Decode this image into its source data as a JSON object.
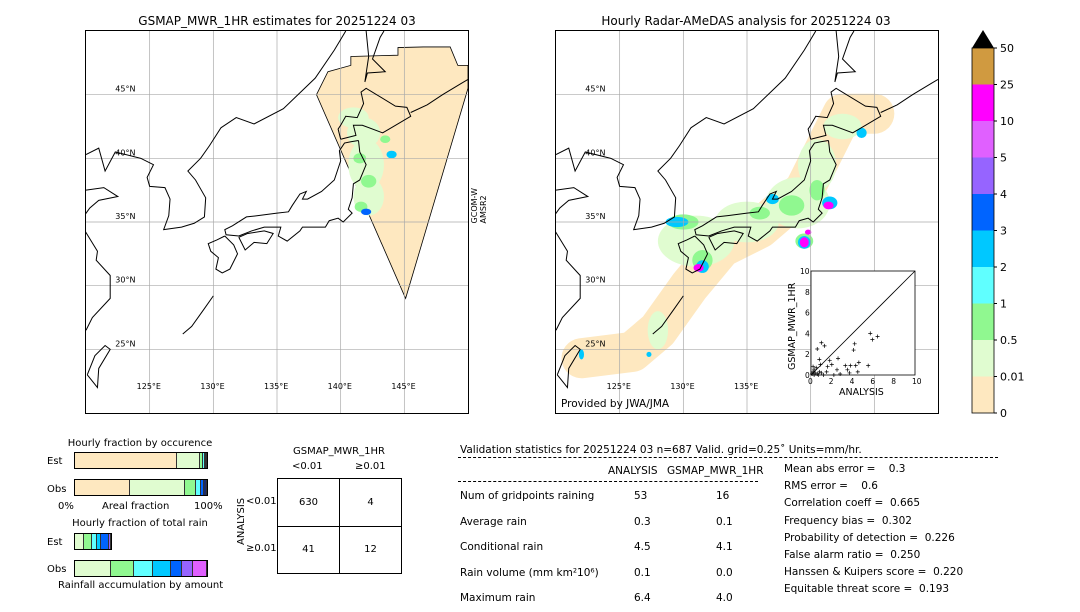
{
  "left_map": {
    "title": "GSMAP_MWR_1HR estimates for 20251224 03",
    "satellite_label_1": "GCOM-W",
    "satellite_label_2": "AMSR2",
    "lon_ticks": [
      "125°E",
      "130°E",
      "135°E",
      "140°E",
      "145°E"
    ],
    "lat_ticks": [
      "25°N",
      "30°N",
      "35°N",
      "40°N",
      "45°N"
    ]
  },
  "right_map": {
    "title": "Hourly Radar-AMeDAS analysis for 20251224 03",
    "credit": "Provided by JWA/JMA",
    "lon_ticks": [
      "125°E",
      "130°E",
      "135°E"
    ],
    "lat_ticks": [
      "25°N",
      "30°N",
      "35°N",
      "40°N",
      "45°N"
    ]
  },
  "colorbar": {
    "levels": [
      "0",
      "0.01",
      "0.5",
      "1",
      "2",
      "3",
      "4",
      "5",
      "10",
      "25",
      "50"
    ],
    "colors": [
      "#fee8c0",
      "#e0fcd0",
      "#90f890",
      "#60ffff",
      "#00c8ff",
      "#0064ff",
      "#9664ff",
      "#e060ff",
      "#ff00ff",
      "#d09a40"
    ],
    "extend_color": "#000000"
  },
  "chart_data": [
    {
      "type": "scatter",
      "xlabel": "ANALYSIS",
      "ylabel": "GSMAP_MWR_1HR",
      "xlim": [
        0,
        10
      ],
      "ylim": [
        0,
        10
      ],
      "ticks": [
        "0",
        "2",
        "4",
        "6",
        "8",
        "10"
      ],
      "diagonal": true,
      "points": [
        [
          0.1,
          0.1
        ],
        [
          0.2,
          0.3
        ],
        [
          0.3,
          0.5
        ],
        [
          0.4,
          0.2
        ],
        [
          0.5,
          0.7
        ],
        [
          0.6,
          0.1
        ],
        [
          0.2,
          0.8
        ],
        [
          0.8,
          0.3
        ],
        [
          0.3,
          0.0
        ],
        [
          0.7,
          0.0
        ],
        [
          1.0,
          0.2
        ],
        [
          1.2,
          0.0
        ],
        [
          0.9,
          1.0
        ],
        [
          0.6,
          2.5
        ],
        [
          0.8,
          1.5
        ],
        [
          1.0,
          3.1
        ],
        [
          1.3,
          2.8
        ],
        [
          1.8,
          1.4
        ],
        [
          2.6,
          1.6
        ],
        [
          2.0,
          1.0
        ],
        [
          2.5,
          0.5
        ],
        [
          1.5,
          0.3
        ],
        [
          2.8,
          0.1
        ],
        [
          3.3,
          0.9
        ],
        [
          3.5,
          0.5
        ],
        [
          3.8,
          0.9
        ],
        [
          3.7,
          0.2
        ],
        [
          4.3,
          0.9
        ],
        [
          4.6,
          1.2
        ],
        [
          4.5,
          0.3
        ],
        [
          4.1,
          2.4
        ],
        [
          4.2,
          3.0
        ],
        [
          5.5,
          0.9
        ],
        [
          5.7,
          4.0
        ],
        [
          5.9,
          3.4
        ],
        [
          6.4,
          3.7
        ],
        [
          2.2,
          0.0
        ],
        [
          1.6,
          0.8
        ]
      ]
    },
    {
      "type": "bar",
      "title": "Hourly fraction by occurence",
      "xlabel": "Areal fraction",
      "tick_left": "0%",
      "tick_right": "100%",
      "categories": [
        "Est",
        "Obs"
      ],
      "series": [
        {
          "values_pct": [
            77.3,
            17.5,
            2.2,
            1.2,
            1.0,
            0.8
          ]
        },
        {
          "values_pct": [
            41.5,
            42.0,
            8.2,
            3.7,
            2.1,
            2.5
          ]
        }
      ]
    },
    {
      "type": "bar",
      "title": "Hourly fraction of total rain",
      "xlabel": "Rainfall accumulation by amount",
      "categories": [
        "Est",
        "Obs"
      ],
      "series": [
        {
          "values_pct": [
            6.8,
            6.2,
            4.0,
            3.3,
            6.2,
            1.2
          ]
        },
        {
          "values_pct": [
            27.3,
            17.2,
            14.3,
            14.0,
            8.0,
            8.7,
            10.5
          ]
        }
      ]
    }
  ],
  "contingency": {
    "title": "GSMAP_MWR_1HR",
    "col_labels": [
      "<0.01",
      "≥0.01"
    ],
    "row_axis": "ANALYSIS",
    "row_labels": [
      "<0.01",
      "≥0.01"
    ],
    "cells": [
      [
        "630",
        "4"
      ],
      [
        "41",
        "12"
      ]
    ]
  },
  "stats": {
    "header": "Validation statistics for 20251224 03  n=687 Valid. grid=0.25˚ Units=mm/hr.",
    "col1": "ANALYSIS",
    "col2": "GSMAP_MWR_1HR",
    "rows": [
      {
        "label": "Num of gridpoints raining",
        "a": "53",
        "b": "16"
      },
      {
        "label": "Average rain",
        "a": "0.3",
        "b": "0.1"
      },
      {
        "label": "Conditional rain",
        "a": "4.5",
        "b": "4.1"
      },
      {
        "label": "Rain volume (mm km²10⁶)",
        "a": "0.1",
        "b": "0.0"
      },
      {
        "label": "Maximum rain",
        "a": "6.4",
        "b": "4.0"
      }
    ],
    "scores": [
      "Mean abs error =    0.3",
      "RMS error =    0.6",
      "Correlation coeff =  0.665",
      "Frequency bias =  0.302",
      "Probability of detection =  0.226",
      "False alarm ratio =  0.250",
      "Hanssen & Kuipers score =  0.220",
      "Equitable threat score =  0.193"
    ]
  }
}
